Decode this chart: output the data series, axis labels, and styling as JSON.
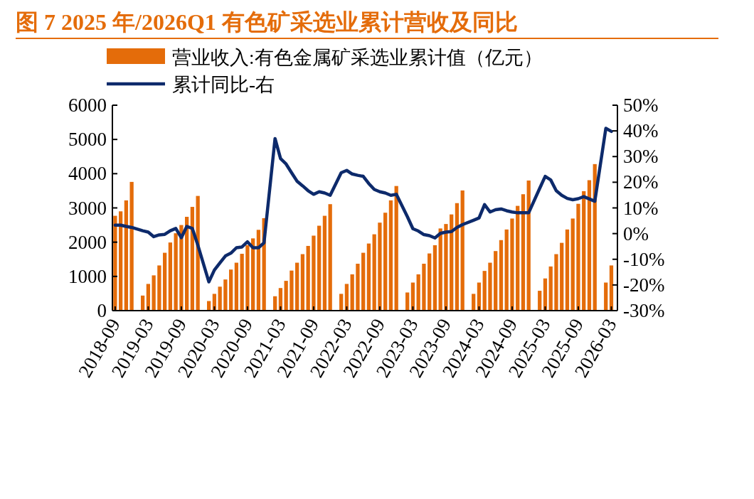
{
  "chart_data": {
    "type": "bar",
    "title": "图 7 2025 年/2026Q1 有色矿采选业累计营收及同比",
    "categories": [
      "2018-09",
      null,
      null,
      null,
      null,
      null,
      "2019-03",
      null,
      null,
      null,
      null,
      null,
      "2019-09",
      null,
      null,
      null,
      null,
      null,
      "2020-03",
      null,
      null,
      null,
      null,
      null,
      "2020-09",
      null,
      null,
      null,
      null,
      null,
      "2021-03",
      null,
      null,
      null,
      null,
      null,
      "2021-09",
      null,
      null,
      null,
      null,
      null,
      "2022-03",
      null,
      null,
      null,
      null,
      null,
      "2022-09",
      null,
      null,
      null,
      null,
      null,
      "2023-03",
      null,
      null,
      null,
      null,
      null,
      "2023-09",
      null,
      null,
      null,
      null,
      null,
      "2024-03",
      null,
      null,
      null,
      null,
      null,
      "2024-09",
      null,
      null,
      null,
      null,
      null,
      "2025-03",
      null,
      null,
      null,
      null,
      null,
      "2025-09",
      null,
      null,
      null,
      null,
      null,
      "2026-03"
    ],
    "series": [
      {
        "name": "营业收入:有色金属矿采选业累计值（亿元）",
        "color": "#e46c0a",
        "values": [
          2770,
          2900,
          3220,
          3760,
          null,
          440,
          780,
          1030,
          1320,
          1690,
          1990,
          2260,
          2500,
          2740,
          3030,
          3350,
          null,
          280,
          490,
          700,
          910,
          1200,
          1400,
          1660,
          1910,
          2110,
          2360,
          2700,
          null,
          420,
          660,
          870,
          1170,
          1400,
          1650,
          1890,
          2190,
          2480,
          2770,
          3110,
          null,
          490,
          780,
          1060,
          1370,
          1690,
          1960,
          2230,
          2570,
          2860,
          3220,
          3640,
          null,
          530,
          820,
          1060,
          1370,
          1670,
          1910,
          2400,
          2530,
          2810,
          3140,
          3510,
          null,
          490,
          820,
          1160,
          1400,
          1740,
          2060,
          2370,
          2690,
          3060,
          3400,
          3800,
          null,
          580,
          940,
          1290,
          1650,
          1980,
          2370,
          2690,
          3120,
          3490,
          3810,
          4280,
          null,
          820,
          1320
        ]
      },
      {
        "name": "累计同比-右",
        "type": "line",
        "axis": "y2",
        "color": "#0d2a6b",
        "values": [
          3.3,
          3.3,
          2.8,
          2.4,
          null,
          1.1,
          0.6,
          -1.2,
          -0.5,
          -0.3,
          1.1,
          2.0,
          -1.6,
          2.8,
          2.0,
          -4.5,
          null,
          -18.8,
          -14.2,
          -11.4,
          -8.7,
          -7.6,
          -5.5,
          -5.2,
          -3.2,
          -5.5,
          -5.5,
          -3.6,
          null,
          37.0,
          29.2,
          27.1,
          23.7,
          20.4,
          18.6,
          16.7,
          15.3,
          16.3,
          15.8,
          14.9,
          null,
          23.7,
          24.6,
          23.2,
          22.7,
          22.3,
          19.5,
          17.2,
          16.3,
          15.8,
          14.9,
          15.3,
          null,
          6.6,
          1.9,
          1.0,
          -0.4,
          -0.8,
          -1.7,
          0.1,
          0.6,
          0.8,
          2.4,
          3.5,
          null,
          5.2,
          6.1,
          11.3,
          8.4,
          9.3,
          9.6,
          8.9,
          8.4,
          8.1,
          8.1,
          8.1,
          null,
          17.6,
          22.3,
          20.9,
          16.7,
          14.9,
          13.7,
          13.2,
          13.6,
          14.4,
          13.5,
          12.6,
          null,
          41.0,
          39.8
        ]
      }
    ],
    "ylim": [
      0,
      6000
    ],
    "yticks": [
      0,
      1000,
      2000,
      3000,
      4000,
      5000,
      6000
    ],
    "y2lim": [
      -30,
      50
    ],
    "y2ticks": [
      {
        "value": -30,
        "label": "-30%"
      },
      {
        "value": -20,
        "label": "-20%"
      },
      {
        "value": -10,
        "label": "-10%"
      },
      {
        "value": 0,
        "label": "0%"
      },
      {
        "value": 10,
        "label": "10%"
      },
      {
        "value": 20,
        "label": "20%"
      },
      {
        "value": 30,
        "label": "30%"
      },
      {
        "value": 40,
        "label": "40%"
      },
      {
        "value": 50,
        "label": "50%"
      }
    ],
    "legend": "top"
  }
}
